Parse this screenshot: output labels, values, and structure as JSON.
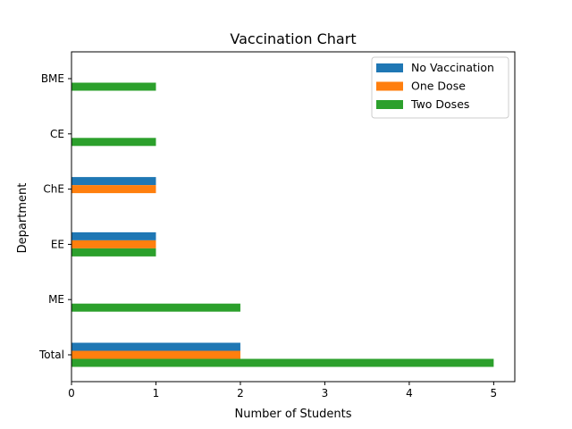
{
  "chart_data": {
    "type": "bar",
    "orientation": "horizontal",
    "title": "Vaccination Chart",
    "xlabel": "Number of Students",
    "ylabel": "Department",
    "categories": [
      "Total",
      "ME",
      "EE",
      "ChE",
      "CE",
      "BME"
    ],
    "series": [
      {
        "name": "No Vaccination",
        "color": "#1f77b4",
        "values": [
          2,
          0,
          1,
          1,
          0,
          0
        ]
      },
      {
        "name": "One Dose",
        "color": "#ff7f0e",
        "values": [
          2,
          0,
          1,
          1,
          0,
          0
        ]
      },
      {
        "name": "Two Doses",
        "color": "#2ca02c",
        "values": [
          5,
          2,
          1,
          0,
          1,
          1
        ]
      }
    ],
    "xlim": [
      0,
      5.25
    ],
    "xticks": [
      "0",
      "1",
      "2",
      "3",
      "4",
      "5"
    ],
    "grid": false,
    "legend_position": "top-right"
  }
}
